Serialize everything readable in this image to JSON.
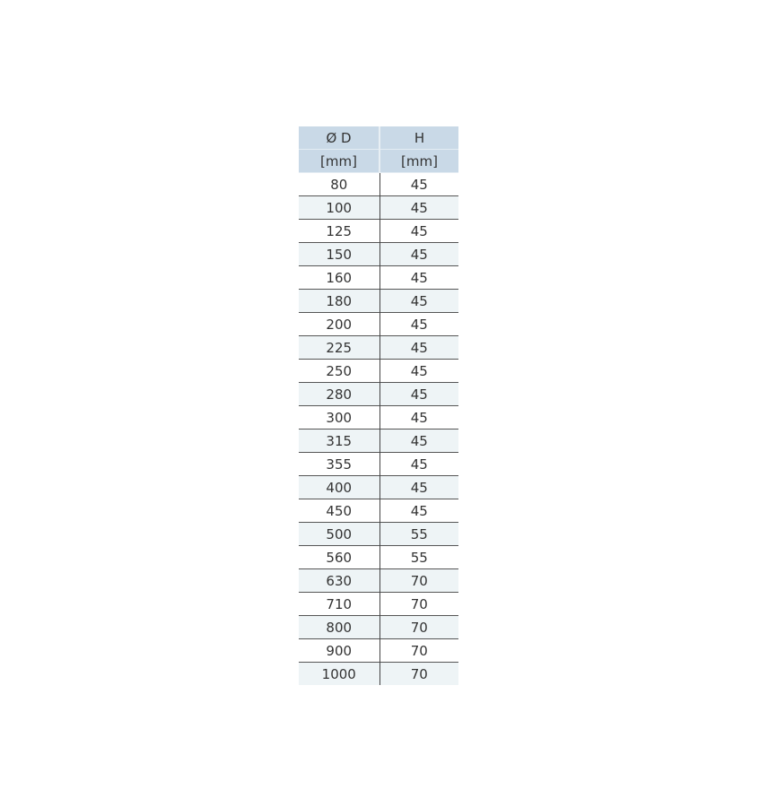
{
  "table": {
    "headers": [
      {
        "name": "Ø D",
        "unit": "[mm]"
      },
      {
        "name": "H",
        "unit": "[mm]"
      }
    ],
    "rows": [
      [
        "80",
        "45"
      ],
      [
        "100",
        "45"
      ],
      [
        "125",
        "45"
      ],
      [
        "150",
        "45"
      ],
      [
        "160",
        "45"
      ],
      [
        "180",
        "45"
      ],
      [
        "200",
        "45"
      ],
      [
        "225",
        "45"
      ],
      [
        "250",
        "45"
      ],
      [
        "280",
        "45"
      ],
      [
        "300",
        "45"
      ],
      [
        "315",
        "45"
      ],
      [
        "355",
        "45"
      ],
      [
        "400",
        "45"
      ],
      [
        "450",
        "45"
      ],
      [
        "500",
        "55"
      ],
      [
        "560",
        "55"
      ],
      [
        "630",
        "70"
      ],
      [
        "710",
        "70"
      ],
      [
        "800",
        "70"
      ],
      [
        "900",
        "70"
      ],
      [
        "1000",
        "70"
      ]
    ]
  },
  "colors": {
    "header_bg": "#c9d9e7",
    "alt_row_bg": "#eef4f6"
  }
}
